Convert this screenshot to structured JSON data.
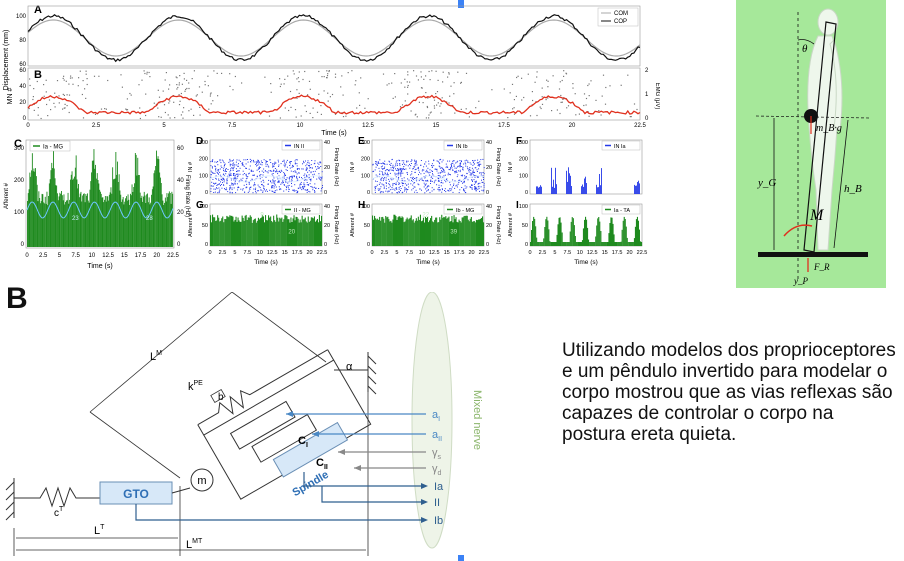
{
  "panelA": {
    "letter": "A",
    "ylabel": "Displacement (mm)",
    "yticks": [
      "100",
      "80",
      "60"
    ],
    "legend": [
      "COM",
      "COP"
    ]
  },
  "panelB": {
    "letter": "B",
    "ylabel_left": "MN #",
    "ylabel_right": "EMG (μV)",
    "yticks_left": [
      "60",
      "40",
      "20",
      "0"
    ],
    "yticks_right": [
      "2",
      "1",
      "0"
    ],
    "xticks": [
      "0",
      "2.5",
      "5",
      "7.5",
      "10",
      "12.5",
      "15",
      "17.5",
      "20",
      "22.5"
    ],
    "xlabel": "Time (s)"
  },
  "panelC": {
    "letter": "C",
    "legend": "Ia - MG",
    "ylabel_left": "Afferent #",
    "ylabel_right": "Firing Rate (Hz)",
    "yticks_left": [
      "300",
      "200",
      "100",
      "0"
    ],
    "yticks_right": [
      "60",
      "40",
      "20",
      "0"
    ],
    "xticks": [
      "0",
      "2.5",
      "5",
      "7.5",
      "10",
      "12.5",
      "15",
      "17.5",
      "20",
      "22.5"
    ],
    "xlabel": "Time (s)",
    "annotations": [
      "23",
      "28"
    ]
  },
  "panelD": {
    "letter": "D",
    "legend": "IN II",
    "ylabel_left": "IN #",
    "ylabel_right": "Firing Rate (Hz)",
    "yticks_left": [
      "300",
      "200",
      "100",
      "0"
    ],
    "yticks_right": [
      "40",
      "20",
      "0"
    ],
    "annotation": "34"
  },
  "panelE": {
    "letter": "E",
    "legend": "IN Ib",
    "ylabel_left": "IN #",
    "ylabel_right": "Firing Rate (Hz)",
    "yticks_left": [
      "300",
      "200",
      "100",
      "0"
    ],
    "yticks_right": [
      "40",
      "20",
      "0"
    ],
    "annotation": "34"
  },
  "panelF": {
    "letter": "F",
    "legend": "IN Ia",
    "ylabel_left": "IN #",
    "yticks_left": [
      "300",
      "200",
      "100",
      "0"
    ]
  },
  "panelG": {
    "letter": "G",
    "legend": "II - MG",
    "ylabel_left": "Afferent #",
    "ylabel_right": "Firing Rate (Hz)",
    "yticks_left": [
      "100",
      "50",
      "0"
    ],
    "yticks_right": [
      "40",
      "20",
      "0"
    ],
    "annotations": [
      "9",
      "20"
    ]
  },
  "panelH": {
    "letter": "H",
    "legend": "Ib - MG",
    "ylabel_left": "Afferent #",
    "ylabel_right": "Firing Rate (Hz)",
    "yticks_left": [
      "100",
      "50",
      "0"
    ],
    "yticks_right": [
      "40",
      "20",
      "0"
    ],
    "annotations": [
      "22",
      "39"
    ]
  },
  "panelI": {
    "letter": "I",
    "legend": "Ia - TA",
    "ylabel_left": "Afferent #",
    "yticks_left": [
      "100",
      "50",
      "0"
    ]
  },
  "bottom_xticks": [
    "0",
    "2.5",
    "5",
    "7.5",
    "10",
    "12.5",
    "15",
    "17.5",
    "20",
    "22.5"
  ],
  "bottom_xlabel": "Time (s)",
  "pendulum": {
    "theta": "θ",
    "mass_label": "m_B·g",
    "yG": "y_G",
    "hB": "h_B",
    "M": "M",
    "FR": "F_R",
    "yP": "y_P"
  },
  "diagramB": {
    "letter": "B",
    "LM": "L",
    "LM_sup": "M",
    "alpha": "α",
    "kPE": "k",
    "kPE_sup": "PE",
    "b": "b",
    "CI": "C",
    "CI_sub": "I",
    "CII": "C",
    "CII_sub": "II",
    "spindle": "Spindle",
    "m": "m",
    "GTO": "GTO",
    "CT": "c",
    "CT_sup": "T",
    "LT": "L",
    "LT_sup": "T",
    "LMT": "L",
    "LMT_sup": "MT",
    "inputs": [
      {
        "main": "a",
        "sub": "I"
      },
      {
        "main": "a",
        "sub": "II"
      },
      {
        "main": "γ",
        "sub": "s"
      },
      {
        "main": "γ",
        "sub": "d"
      }
    ],
    "outputs": [
      "Ia",
      "II",
      "Ib"
    ],
    "nerve_label": "Mixed nerve"
  },
  "caption": "Utilizando modelos dos proprioceptores e um pêndulo invertido para modelar o corpo mostrou que as vias reflexas são capazes de controlar o corpo na postura ereta quieta.",
  "colors": {
    "green_panel": "#1f8a1f",
    "blue_panel": "#2438e8",
    "red_trace": "#e0301e",
    "pendulum_bg": "#a6e89a",
    "spindle_fill": "#d7e8f8",
    "spindle_text": "#2f6fb5",
    "nerve_green": "#8ab56a"
  }
}
